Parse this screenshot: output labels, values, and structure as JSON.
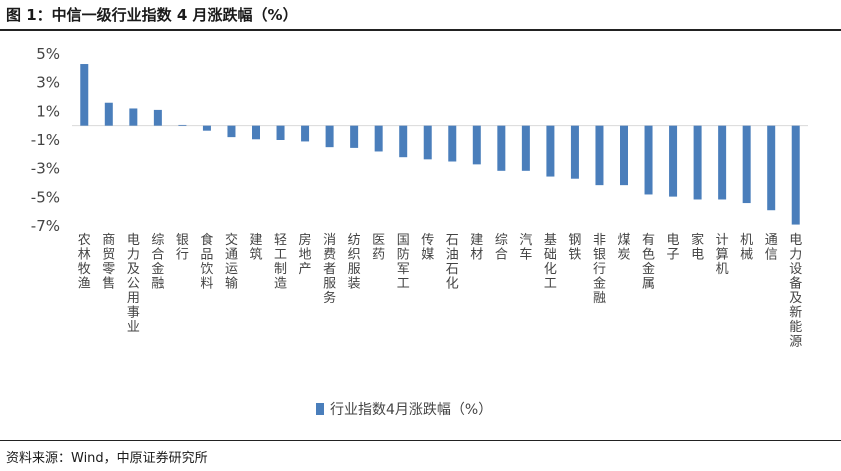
{
  "figure": {
    "title": "图 1：中信一级行业指数 4 月涨跌幅（%）",
    "source": "资料来源：Wind，中原证券研究所"
  },
  "colors": {
    "bar": "#4a7ebb",
    "zero_line": "#d9d9d9",
    "text": "#444444"
  },
  "chart_data": {
    "type": "bar",
    "ylim": [
      -7,
      5
    ],
    "yticks": [
      5,
      3,
      1,
      -1,
      -3,
      -5,
      -7
    ],
    "ytick_labels": [
      "5%",
      "3%",
      "1%",
      "-1%",
      "-3%",
      "-5%",
      "-7%"
    ],
    "grid": false,
    "legend_position": "bottom",
    "categories": [
      "农林牧渔",
      "商贸零售",
      "电力及公用事业",
      "综合金融",
      "银行",
      "食品饮料",
      "交通运输",
      "建筑",
      "轻工制造",
      "房地产",
      "消费者服务",
      "纺织服装",
      "医药",
      "国防军工",
      "传媒",
      "石油石化",
      "建材",
      "综合",
      "汽车",
      "基础化工",
      "钢铁",
      "非银行金融",
      "煤炭",
      "有色金属",
      "电子",
      "家电",
      "计算机",
      "机械",
      "通信",
      "电力设备及新能源"
    ],
    "series": [
      {
        "name": "行业指数4月涨跌幅（%）",
        "values": [
          4.3,
          1.6,
          1.2,
          1.1,
          0.05,
          -0.35,
          -0.8,
          -0.95,
          -1.0,
          -1.1,
          -1.5,
          -1.55,
          -1.8,
          -2.2,
          -2.35,
          -2.5,
          -2.7,
          -3.15,
          -3.15,
          -3.55,
          -3.7,
          -4.15,
          -4.15,
          -4.8,
          -4.95,
          -5.15,
          -5.15,
          -5.4,
          -5.9,
          -6.9
        ]
      }
    ]
  }
}
